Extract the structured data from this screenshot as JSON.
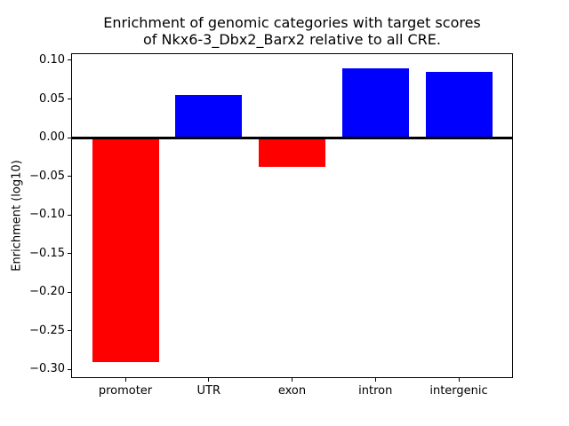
{
  "chart_data": {
    "type": "bar",
    "title": "Enrichment of genomic categories with target scores\nof Nkx6-3_Dbx2_Barx2 relative to all CRE.",
    "title_line1": "Enrichment of genomic categories with target scores",
    "title_line2": "of Nkx6-3_Dbx2_Barx2 relative to all CRE.",
    "xlabel": "",
    "ylabel": "Enrichment (log10)",
    "categories": [
      "promoter",
      "UTR",
      "exon",
      "intron",
      "intergenic"
    ],
    "values": [
      -0.29,
      0.055,
      -0.038,
      0.09,
      0.085
    ],
    "bar_colors": [
      "#ff0000",
      "#0000ff",
      "#ff0000",
      "#0000ff",
      "#0000ff"
    ],
    "positive_color": "#0000ff",
    "negative_color": "#ff0000",
    "axis_color": "#000000",
    "background_color": "#ffffff",
    "ylim": [
      -0.31,
      0.108
    ],
    "xlim": [
      -0.64,
      4.64
    ],
    "bar_width": 0.8,
    "yticks": [
      {
        "value": 0.1,
        "label": "0.10"
      },
      {
        "value": 0.05,
        "label": "0.05"
      },
      {
        "value": 0.0,
        "label": "0.00"
      },
      {
        "value": -0.05,
        "label": "−0.05"
      },
      {
        "value": -0.1,
        "label": "−0.10"
      },
      {
        "value": -0.15,
        "label": "−0.15"
      },
      {
        "value": -0.2,
        "label": "−0.20"
      },
      {
        "value": -0.25,
        "label": "−0.25"
      },
      {
        "value": -0.3,
        "label": "−0.30"
      }
    ],
    "grid": false,
    "zero_line": true
  }
}
